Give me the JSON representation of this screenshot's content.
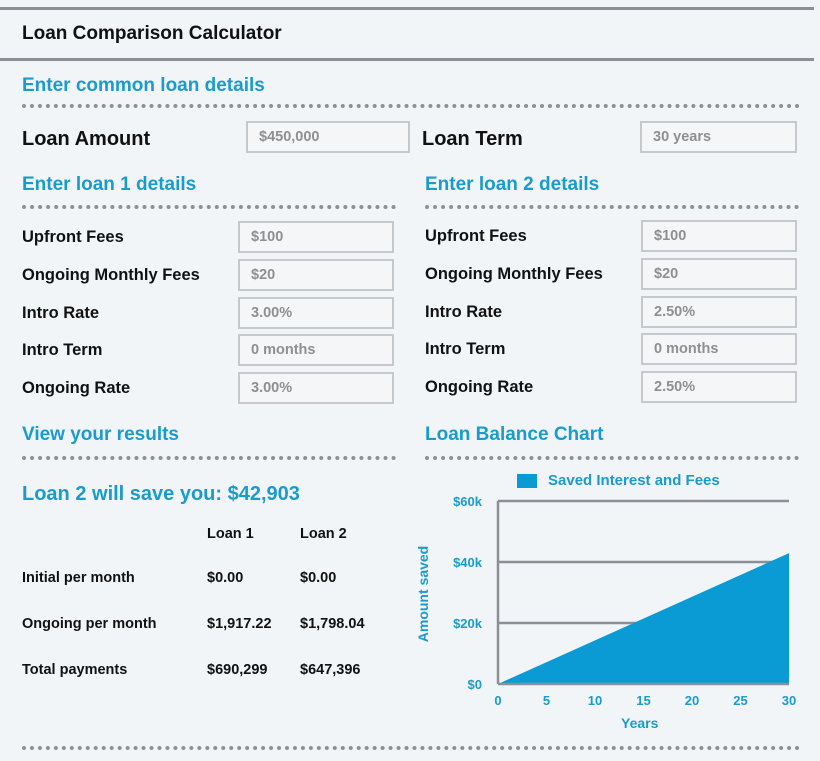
{
  "calculator": {
    "title": "Loan Comparison Calculator"
  },
  "common": {
    "heading": "Enter common loan details",
    "loan_amount_label": "Loan Amount",
    "loan_amount_value": "$450,000",
    "loan_term_label": "Loan Term",
    "loan_term_value": "30 years"
  },
  "loan1": {
    "heading": "Enter loan 1 details",
    "fields": [
      {
        "label": "Upfront Fees",
        "value": "$100"
      },
      {
        "label": "Ongoing Monthly Fees",
        "value": "$20"
      },
      {
        "label": "Intro Rate",
        "value": "3.00%"
      },
      {
        "label": "Intro Term",
        "value": "0 months"
      },
      {
        "label": "Ongoing Rate",
        "value": "3.00%"
      }
    ]
  },
  "loan2": {
    "heading": "Enter loan 2 details",
    "fields": [
      {
        "label": "Upfront Fees",
        "value": "$100"
      },
      {
        "label": "Ongoing Monthly Fees",
        "value": "$20"
      },
      {
        "label": "Intro Rate",
        "value": "2.50%"
      },
      {
        "label": "Intro Term",
        "value": "0 months"
      },
      {
        "label": "Ongoing Rate",
        "value": "2.50%"
      }
    ]
  },
  "results": {
    "heading": "View your results",
    "savings_text": "Loan 2 will save you: $42,903",
    "columns": [
      "Loan 1",
      "Loan 2"
    ],
    "rows": [
      {
        "label": "Initial per month",
        "loan1": "$0.00",
        "loan2": "$0.00"
      },
      {
        "label": "Ongoing per month",
        "loan1": "$1,917.22",
        "loan2": "$1,798.04"
      },
      {
        "label": "Total payments",
        "loan1": "$690,299",
        "loan2": "$647,396"
      }
    ]
  },
  "chart": {
    "heading": "Loan Balance Chart",
    "accent_color": "#0a9bd5"
  },
  "chart_data": {
    "type": "area",
    "series": [
      {
        "name": "Saved Interest and Fees",
        "x": [
          0,
          30
        ],
        "values": [
          0,
          42903
        ]
      }
    ],
    "xlabel": "Years",
    "ylabel": "Amount saved",
    "x_ticks": [
      "0",
      "5",
      "10",
      "15",
      "20",
      "25",
      "30"
    ],
    "y_ticks": [
      "$0",
      "$20k",
      "$40k",
      "$60k"
    ],
    "xlim": [
      0,
      30
    ],
    "ylim": [
      0,
      60000
    ],
    "grid": true,
    "legend": "top"
  }
}
